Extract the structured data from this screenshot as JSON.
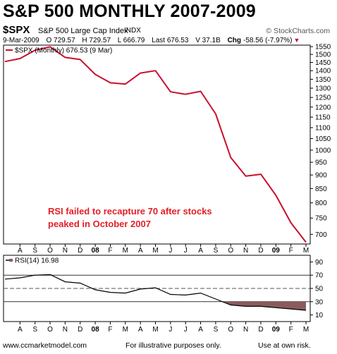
{
  "header": {
    "title": "S&P 500 MONTHLY 2007-2009",
    "ticker": "$SPX",
    "company": "S&P 500 Large Cap Index",
    "exchange": "INDX",
    "credit": "© StockCharts.com",
    "date": "9-Mar-2009",
    "open": "O 729.57",
    "high": "H 729.57",
    "low": "L 666.79",
    "last": "Last 676.53",
    "volume": "V 37.1B",
    "change_label": "Chg",
    "change": "-58.56 (-7.97%)",
    "change_arrow": "▼"
  },
  "footer": {
    "left": "www.ccmarketmodel.com",
    "center": "For illustrative purposes only.",
    "right": "Use at own risk."
  },
  "colors": {
    "price_line": "#c8102e",
    "annotation": "#e21f26",
    "rsi_fill": "#8b5b5b"
  },
  "chart_data": [
    {
      "type": "line",
      "legend": "$SPX (Monthly) 676.53 (9 Mar)",
      "legend_placement": "top-left",
      "x": [
        "Jul 2007",
        "Aug 2007",
        "Sep 2007",
        "Oct 2007",
        "Nov 2007",
        "Dec 2007",
        "Jan 2008",
        "Feb 2008",
        "Mar 2008",
        "Apr 2008",
        "May 2008",
        "Jun 2008",
        "Jul 2008",
        "Aug 2008",
        "Sep 2008",
        "Oct 2008",
        "Nov 2008",
        "Dec 2008",
        "Jan 2009",
        "Feb 2009",
        "Mar 2009"
      ],
      "x_tick_labels": [
        "A",
        "S",
        "O",
        "N",
        "D",
        "08",
        "F",
        "M",
        "A",
        "M",
        "J",
        "J",
        "A",
        "S",
        "O",
        "N",
        "D",
        "09",
        "F",
        "M"
      ],
      "values": [
        1455,
        1474,
        1527,
        1549,
        1481,
        1468,
        1378,
        1330,
        1323,
        1386,
        1400,
        1280,
        1267,
        1283,
        1166,
        969,
        896,
        903,
        826,
        735,
        677
      ],
      "y_scale": "log",
      "ylim": [
        672,
        1560
      ],
      "y_ticks": [
        700,
        750,
        800,
        850,
        900,
        950,
        1000,
        1050,
        1100,
        1150,
        1200,
        1250,
        1300,
        1350,
        1400,
        1450,
        1500,
        1550
      ],
      "y_axis_side": "right",
      "grid": false,
      "annotation": [
        "RSI failed to recapture 70 after stocks",
        "peaked in October 2007"
      ]
    },
    {
      "type": "line",
      "legend": "RSI(14) 16.98",
      "legend_placement": "top-left",
      "x": [
        "Jul 2007",
        "Aug 2007",
        "Sep 2007",
        "Oct 2007",
        "Nov 2007",
        "Dec 2007",
        "Jan 2008",
        "Feb 2008",
        "Mar 2008",
        "Apr 2008",
        "May 2008",
        "Jun 2008",
        "Jul 2008",
        "Aug 2008",
        "Sep 2008",
        "Oct 2008",
        "Nov 2008",
        "Dec 2008",
        "Jan 2009",
        "Feb 2009",
        "Mar 2009"
      ],
      "x_tick_labels": [
        "A",
        "S",
        "O",
        "N",
        "D",
        "08",
        "F",
        "M",
        "A",
        "M",
        "J",
        "J",
        "A",
        "S",
        "O",
        "N",
        "D",
        "09",
        "F",
        "M"
      ],
      "values": [
        64,
        66,
        70,
        71,
        60,
        58,
        48,
        44,
        43,
        49,
        51,
        41,
        40,
        43,
        34,
        25,
        23,
        23,
        21,
        19,
        17
      ],
      "ylim": [
        0,
        100
      ],
      "y_ticks": [
        10,
        30,
        50,
        70,
        90
      ],
      "reference_lines": [
        70,
        50,
        30
      ],
      "shade_below": 30,
      "y_axis_side": "right"
    }
  ]
}
